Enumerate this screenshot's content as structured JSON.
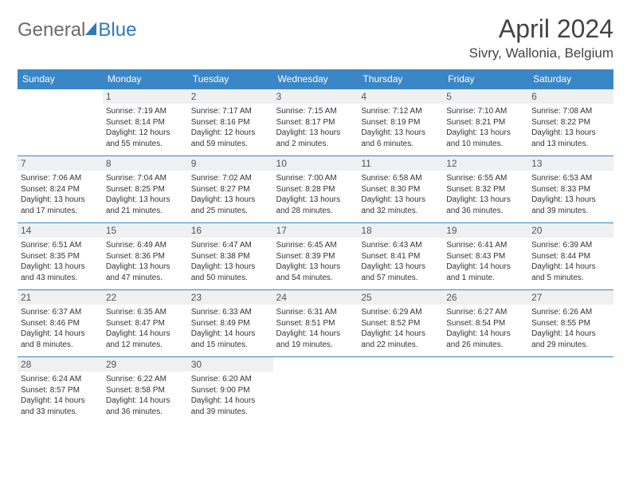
{
  "logo": {
    "general": "General",
    "blue": "Blue"
  },
  "header": {
    "title": "April 2024",
    "location": "Sivry, Wallonia, Belgium"
  },
  "calendar": {
    "day_headers": [
      "Sunday",
      "Monday",
      "Tuesday",
      "Wednesday",
      "Thursday",
      "Friday",
      "Saturday"
    ],
    "header_bg": "#3b86c6",
    "header_fg": "#ffffff",
    "cell_border": "#3b86c6",
    "daynum_bg": "#eef0f1",
    "text_color": "#333333",
    "body_fontsize": 10,
    "weeks": [
      [
        null,
        {
          "n": "1",
          "sunrise": "Sunrise: 7:19 AM",
          "sunset": "Sunset: 8:14 PM",
          "day1": "Daylight: 12 hours",
          "day2": "and 55 minutes."
        },
        {
          "n": "2",
          "sunrise": "Sunrise: 7:17 AM",
          "sunset": "Sunset: 8:16 PM",
          "day1": "Daylight: 12 hours",
          "day2": "and 59 minutes."
        },
        {
          "n": "3",
          "sunrise": "Sunrise: 7:15 AM",
          "sunset": "Sunset: 8:17 PM",
          "day1": "Daylight: 13 hours",
          "day2": "and 2 minutes."
        },
        {
          "n": "4",
          "sunrise": "Sunrise: 7:12 AM",
          "sunset": "Sunset: 8:19 PM",
          "day1": "Daylight: 13 hours",
          "day2": "and 6 minutes."
        },
        {
          "n": "5",
          "sunrise": "Sunrise: 7:10 AM",
          "sunset": "Sunset: 8:21 PM",
          "day1": "Daylight: 13 hours",
          "day2": "and 10 minutes."
        },
        {
          "n": "6",
          "sunrise": "Sunrise: 7:08 AM",
          "sunset": "Sunset: 8:22 PM",
          "day1": "Daylight: 13 hours",
          "day2": "and 13 minutes."
        }
      ],
      [
        {
          "n": "7",
          "sunrise": "Sunrise: 7:06 AM",
          "sunset": "Sunset: 8:24 PM",
          "day1": "Daylight: 13 hours",
          "day2": "and 17 minutes."
        },
        {
          "n": "8",
          "sunrise": "Sunrise: 7:04 AM",
          "sunset": "Sunset: 8:25 PM",
          "day1": "Daylight: 13 hours",
          "day2": "and 21 minutes."
        },
        {
          "n": "9",
          "sunrise": "Sunrise: 7:02 AM",
          "sunset": "Sunset: 8:27 PM",
          "day1": "Daylight: 13 hours",
          "day2": "and 25 minutes."
        },
        {
          "n": "10",
          "sunrise": "Sunrise: 7:00 AM",
          "sunset": "Sunset: 8:28 PM",
          "day1": "Daylight: 13 hours",
          "day2": "and 28 minutes."
        },
        {
          "n": "11",
          "sunrise": "Sunrise: 6:58 AM",
          "sunset": "Sunset: 8:30 PM",
          "day1": "Daylight: 13 hours",
          "day2": "and 32 minutes."
        },
        {
          "n": "12",
          "sunrise": "Sunrise: 6:55 AM",
          "sunset": "Sunset: 8:32 PM",
          "day1": "Daylight: 13 hours",
          "day2": "and 36 minutes."
        },
        {
          "n": "13",
          "sunrise": "Sunrise: 6:53 AM",
          "sunset": "Sunset: 8:33 PM",
          "day1": "Daylight: 13 hours",
          "day2": "and 39 minutes."
        }
      ],
      [
        {
          "n": "14",
          "sunrise": "Sunrise: 6:51 AM",
          "sunset": "Sunset: 8:35 PM",
          "day1": "Daylight: 13 hours",
          "day2": "and 43 minutes."
        },
        {
          "n": "15",
          "sunrise": "Sunrise: 6:49 AM",
          "sunset": "Sunset: 8:36 PM",
          "day1": "Daylight: 13 hours",
          "day2": "and 47 minutes."
        },
        {
          "n": "16",
          "sunrise": "Sunrise: 6:47 AM",
          "sunset": "Sunset: 8:38 PM",
          "day1": "Daylight: 13 hours",
          "day2": "and 50 minutes."
        },
        {
          "n": "17",
          "sunrise": "Sunrise: 6:45 AM",
          "sunset": "Sunset: 8:39 PM",
          "day1": "Daylight: 13 hours",
          "day2": "and 54 minutes."
        },
        {
          "n": "18",
          "sunrise": "Sunrise: 6:43 AM",
          "sunset": "Sunset: 8:41 PM",
          "day1": "Daylight: 13 hours",
          "day2": "and 57 minutes."
        },
        {
          "n": "19",
          "sunrise": "Sunrise: 6:41 AM",
          "sunset": "Sunset: 8:43 PM",
          "day1": "Daylight: 14 hours",
          "day2": "and 1 minute."
        },
        {
          "n": "20",
          "sunrise": "Sunrise: 6:39 AM",
          "sunset": "Sunset: 8:44 PM",
          "day1": "Daylight: 14 hours",
          "day2": "and 5 minutes."
        }
      ],
      [
        {
          "n": "21",
          "sunrise": "Sunrise: 6:37 AM",
          "sunset": "Sunset: 8:46 PM",
          "day1": "Daylight: 14 hours",
          "day2": "and 8 minutes."
        },
        {
          "n": "22",
          "sunrise": "Sunrise: 6:35 AM",
          "sunset": "Sunset: 8:47 PM",
          "day1": "Daylight: 14 hours",
          "day2": "and 12 minutes."
        },
        {
          "n": "23",
          "sunrise": "Sunrise: 6:33 AM",
          "sunset": "Sunset: 8:49 PM",
          "day1": "Daylight: 14 hours",
          "day2": "and 15 minutes."
        },
        {
          "n": "24",
          "sunrise": "Sunrise: 6:31 AM",
          "sunset": "Sunset: 8:51 PM",
          "day1": "Daylight: 14 hours",
          "day2": "and 19 minutes."
        },
        {
          "n": "25",
          "sunrise": "Sunrise: 6:29 AM",
          "sunset": "Sunset: 8:52 PM",
          "day1": "Daylight: 14 hours",
          "day2": "and 22 minutes."
        },
        {
          "n": "26",
          "sunrise": "Sunrise: 6:27 AM",
          "sunset": "Sunset: 8:54 PM",
          "day1": "Daylight: 14 hours",
          "day2": "and 26 minutes."
        },
        {
          "n": "27",
          "sunrise": "Sunrise: 6:26 AM",
          "sunset": "Sunset: 8:55 PM",
          "day1": "Daylight: 14 hours",
          "day2": "and 29 minutes."
        }
      ],
      [
        {
          "n": "28",
          "sunrise": "Sunrise: 6:24 AM",
          "sunset": "Sunset: 8:57 PM",
          "day1": "Daylight: 14 hours",
          "day2": "and 33 minutes."
        },
        {
          "n": "29",
          "sunrise": "Sunrise: 6:22 AM",
          "sunset": "Sunset: 8:58 PM",
          "day1": "Daylight: 14 hours",
          "day2": "and 36 minutes."
        },
        {
          "n": "30",
          "sunrise": "Sunrise: 6:20 AM",
          "sunset": "Sunset: 9:00 PM",
          "day1": "Daylight: 14 hours",
          "day2": "and 39 minutes."
        },
        null,
        null,
        null,
        null
      ]
    ]
  }
}
